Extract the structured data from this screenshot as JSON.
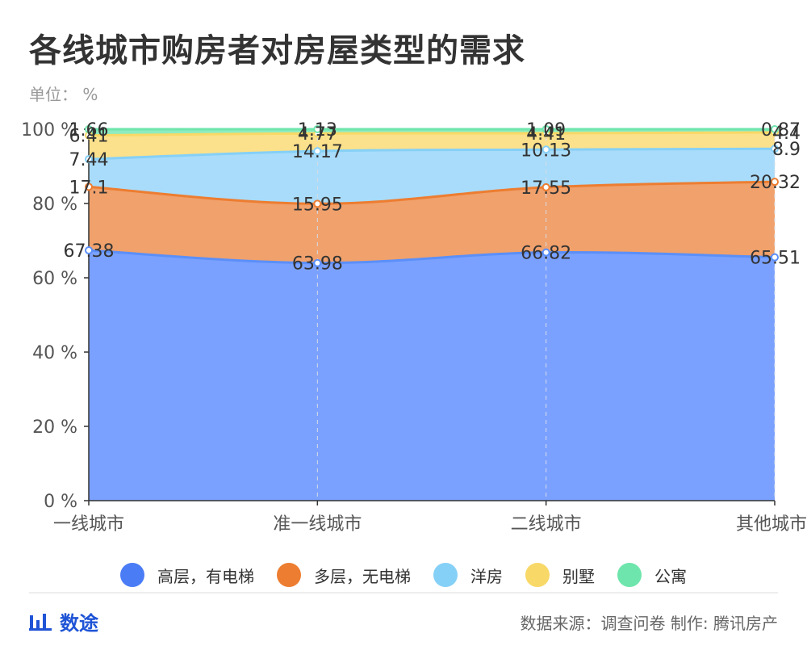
{
  "title": "各线城市购房者对房屋类型的需求",
  "unit": "单位： %",
  "chart_data": {
    "type": "area",
    "stacked": true,
    "categories": [
      "一线城市",
      "准一线城市",
      "二线城市",
      "其他城市"
    ],
    "yticks": [
      "0 %",
      "20 %",
      "40 %",
      "60 %",
      "80 %",
      "100 %"
    ],
    "ylim": [
      0,
      100
    ],
    "series": [
      {
        "name": "高层，有电梯",
        "color": "#5b8ff9",
        "values": [
          67.38,
          63.98,
          66.82,
          65.51
        ]
      },
      {
        "name": "多层，无电梯",
        "color": "#ed7d31",
        "values": [
          17.1,
          15.95,
          17.55,
          20.32
        ]
      },
      {
        "name": "洋房",
        "color": "#85d0f7",
        "values": [
          7.44,
          14.17,
          10.13,
          8.9
        ]
      },
      {
        "name": "别墅",
        "color": "#f8d866",
        "values": [
          6.41,
          4.77,
          4.41,
          4.4
        ]
      },
      {
        "name": "公寓",
        "color": "#6ee5ac",
        "values": [
          1.66,
          1.13,
          1.09,
          0.87
        ]
      }
    ]
  },
  "legend_labels": [
    "高层，有电梯",
    "多层，无电梯",
    "洋房",
    "别墅",
    "公寓"
  ],
  "brand": "数途",
  "source": "数据来源：调查问卷 制作: 腾讯房产"
}
